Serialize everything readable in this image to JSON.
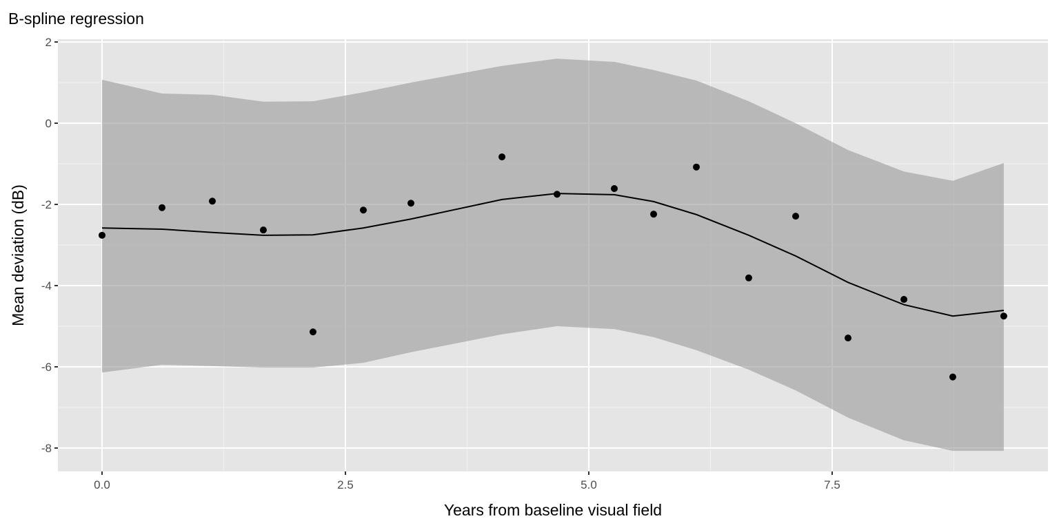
{
  "chart_data": {
    "type": "line",
    "title": "B-spline regression",
    "xlabel": "Years from baseline visual field",
    "ylabel": "Mean deviation (dB)",
    "xlim": [
      -0.46,
      9.72
    ],
    "ylim": [
      -8.55,
      2.08
    ],
    "x_ticks": [
      0,
      2.5,
      5,
      7.5
    ],
    "x_tick_labels": [
      "0.0",
      "2.5",
      "5.0",
      "7.5"
    ],
    "y_ticks": [
      2,
      0,
      -2,
      -4,
      -6,
      -8
    ],
    "y_tick_labels": [
      "2",
      "0",
      "-2",
      "-4",
      "-6",
      "-8"
    ],
    "grid": true,
    "legend": "none",
    "x": [
      0,
      0.616,
      1.133,
      1.657,
      2.167,
      2.684,
      3.173,
      4.108,
      4.674,
      5.262,
      5.666,
      6.105,
      6.643,
      7.125,
      7.663,
      8.237,
      8.739,
      9.263
    ],
    "series": [
      {
        "name": "observed",
        "kind": "points",
        "values": [
          -2.76,
          -2.08,
          -1.92,
          -2.63,
          -5.14,
          -2.14,
          -1.97,
          -0.83,
          -1.75,
          -1.61,
          -2.24,
          -1.08,
          -3.81,
          -2.29,
          -5.29,
          -4.34,
          -6.25,
          -4.75
        ]
      },
      {
        "name": "fit",
        "kind": "line",
        "values": [
          -2.58,
          -2.61,
          -2.69,
          -2.76,
          -2.75,
          -2.58,
          -2.36,
          -1.88,
          -1.73,
          -1.76,
          -1.93,
          -2.25,
          -2.76,
          -3.27,
          -3.92,
          -4.47,
          -4.75,
          -4.61
        ]
      },
      {
        "name": "upper",
        "kind": "band_upper",
        "values": [
          1.07,
          0.73,
          0.7,
          0.53,
          0.54,
          0.76,
          1.0,
          1.41,
          1.59,
          1.51,
          1.31,
          1.05,
          0.54,
          0.0,
          -0.66,
          -1.19,
          -1.42,
          -0.98
        ]
      },
      {
        "name": "lower",
        "kind": "band_lower",
        "values": [
          -6.14,
          -5.95,
          -5.98,
          -6.02,
          -6.02,
          -5.9,
          -5.64,
          -5.2,
          -5.0,
          -5.07,
          -5.27,
          -5.59,
          -6.07,
          -6.58,
          -7.25,
          -7.81,
          -8.07,
          -8.07
        ]
      }
    ]
  }
}
